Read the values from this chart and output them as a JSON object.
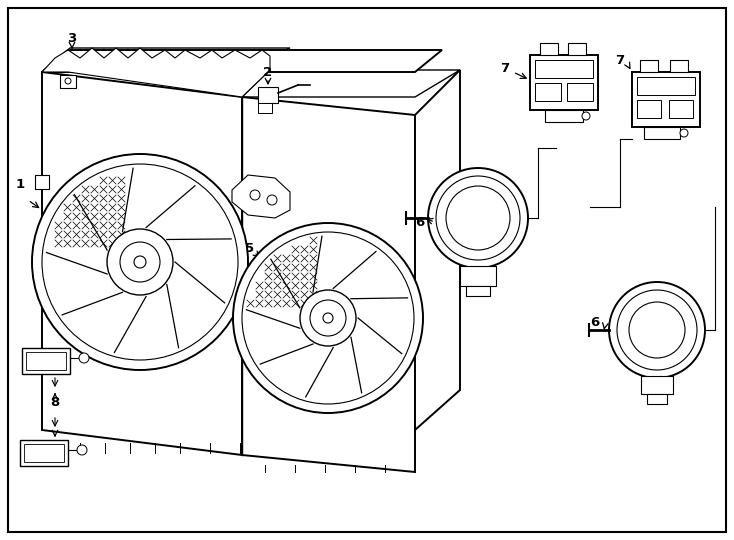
{
  "bg_color": "#ffffff",
  "line_color": "#000000",
  "border_color": "#000000",
  "fig_width": 7.34,
  "fig_height": 5.4,
  "dpi": 100
}
